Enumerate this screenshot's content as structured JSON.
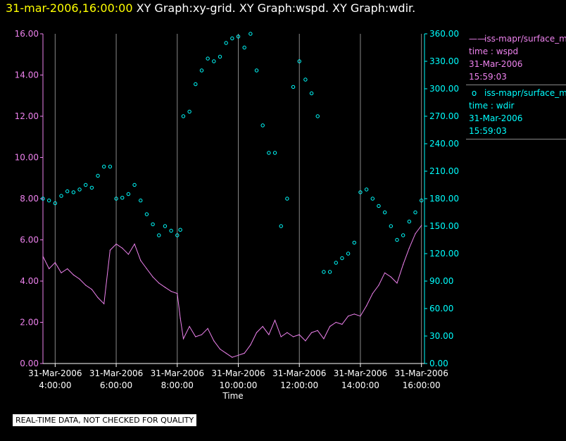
{
  "header": {
    "timestamp": "31-mar-2006,16:00:00",
    "graphs": "XY Graph:xy-grid.  XY Graph:wspd.  XY Graph:wdir."
  },
  "legend": [
    {
      "series": "iss-mapr/surface_m",
      "time_label": "time : wspd",
      "date": "31-Mar-2006",
      "time": "15:59:03",
      "color": "#ee82ee",
      "marker": "line"
    },
    {
      "series": "iss-mapr/surface_m",
      "time_label": "time : wdir",
      "date": "31-Mar-2006",
      "time": "15:59:03",
      "color": "#00ffff",
      "marker": "circle"
    }
  ],
  "footer": {
    "quality_note": "REAL-TIME DATA, NOT CHECKED FOR QUALITY"
  },
  "chart_data": {
    "type": "line",
    "xlabel": "Time",
    "x_ticks": [
      {
        "date": "31-Mar-2006",
        "time": "4:00:00",
        "hour": 4
      },
      {
        "date": "31-Mar-2006",
        "time": "6:00:00",
        "hour": 6
      },
      {
        "date": "31-Mar-2006",
        "time": "8:00:00",
        "hour": 8
      },
      {
        "date": "31-Mar-2006",
        "time": "10:00:00",
        "hour": 10
      },
      {
        "date": "31-Mar-2006",
        "time": "12:00:00",
        "hour": 12
      },
      {
        "date": "31-Mar-2006",
        "time": "14:00:00",
        "hour": 14
      },
      {
        "date": "31-Mar-2006",
        "time": "16:00:00",
        "hour": 16
      }
    ],
    "xlim_hours": [
      3.6,
      16.1
    ],
    "grid": "vertical",
    "y_left": {
      "ylim": [
        0,
        16
      ],
      "ticks": [
        "0.00",
        "2.00",
        "4.00",
        "6.00",
        "8.00",
        "10.00",
        "12.00",
        "14.00",
        "16.00"
      ],
      "color": "#ee82ee"
    },
    "y_right": {
      "ylim": [
        0,
        360
      ],
      "ticks": [
        "0.00",
        "30.00",
        "60.00",
        "90.00",
        "120.00",
        "150.00",
        "180.00",
        "210.00",
        "240.00",
        "270.00",
        "300.00",
        "330.00",
        "360.00"
      ],
      "color": "#00ffff"
    },
    "series": [
      {
        "name": "wspd",
        "axis": "left",
        "style": "line",
        "color": "#ee82ee",
        "x_hours": [
          3.6,
          3.8,
          4.0,
          4.2,
          4.4,
          4.6,
          4.8,
          5.0,
          5.2,
          5.4,
          5.6,
          5.8,
          6.0,
          6.2,
          6.4,
          6.6,
          6.8,
          7.0,
          7.2,
          7.4,
          7.6,
          7.8,
          8.0,
          8.1,
          8.2,
          8.4,
          8.6,
          8.8,
          9.0,
          9.2,
          9.4,
          9.6,
          9.8,
          10.0,
          10.2,
          10.4,
          10.6,
          10.8,
          11.0,
          11.2,
          11.4,
          11.6,
          11.8,
          12.0,
          12.2,
          12.4,
          12.6,
          12.8,
          13.0,
          13.2,
          13.4,
          13.6,
          13.8,
          14.0,
          14.2,
          14.4,
          14.6,
          14.8,
          15.0,
          15.2,
          15.4,
          15.6,
          15.8,
          16.0
        ],
        "values": [
          5.2,
          4.6,
          4.9,
          4.4,
          4.6,
          4.3,
          4.1,
          3.8,
          3.6,
          3.2,
          2.9,
          5.5,
          5.8,
          5.6,
          5.3,
          5.8,
          5.0,
          4.6,
          4.2,
          3.9,
          3.7,
          3.5,
          3.4,
          2.2,
          1.2,
          1.8,
          1.3,
          1.4,
          1.7,
          1.1,
          0.7,
          0.5,
          0.3,
          0.4,
          0.5,
          0.9,
          1.5,
          1.8,
          1.4,
          2.1,
          1.3,
          1.5,
          1.3,
          1.4,
          1.1,
          1.5,
          1.6,
          1.2,
          1.8,
          2.0,
          1.9,
          2.3,
          2.4,
          2.3,
          2.8,
          3.4,
          3.8,
          4.4,
          4.2,
          3.9,
          4.8,
          5.6,
          6.3,
          6.7
        ]
      },
      {
        "name": "wdir",
        "axis": "right",
        "style": "circle",
        "color": "#00ffff",
        "x_hours": [
          3.6,
          3.8,
          4.0,
          4.2,
          4.4,
          4.6,
          4.8,
          5.0,
          5.2,
          5.4,
          5.6,
          5.8,
          6.0,
          6.2,
          6.4,
          6.6,
          6.8,
          7.0,
          7.2,
          7.4,
          7.6,
          7.8,
          8.0,
          8.1,
          8.2,
          8.4,
          8.6,
          8.8,
          9.0,
          9.2,
          9.4,
          9.6,
          9.8,
          10.0,
          10.2,
          10.4,
          10.6,
          10.8,
          11.0,
          11.2,
          11.4,
          11.6,
          11.8,
          12.0,
          12.2,
          12.4,
          12.6,
          12.8,
          13.0,
          13.2,
          13.4,
          13.6,
          13.8,
          14.0,
          14.2,
          14.4,
          14.6,
          14.8,
          15.0,
          15.2,
          15.4,
          15.6,
          15.8,
          16.0
        ],
        "values": [
          180,
          178,
          175,
          183,
          188,
          187,
          190,
          195,
          192,
          205,
          215,
          215,
          180,
          181,
          185,
          195,
          178,
          163,
          152,
          140,
          150,
          145,
          140,
          146,
          270,
          275,
          305,
          320,
          333,
          330,
          335,
          350,
          355,
          357,
          345,
          360,
          320,
          260,
          230,
          230,
          150,
          180,
          302,
          330,
          310,
          295,
          270,
          100,
          100,
          110,
          115,
          120,
          132,
          187,
          190,
          180,
          172,
          165,
          150,
          135,
          140,
          155,
          165,
          178
        ]
      }
    ]
  }
}
